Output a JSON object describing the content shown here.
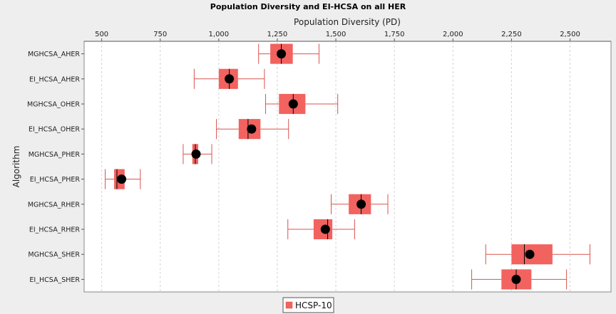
{
  "chart_data": {
    "type": "box",
    "title": "Population Diversity and EI-HCSA on all HER",
    "xlabel": "Population Diversity (PD)",
    "ylabel": "Algorithm",
    "xlim": [
      425,
      2675
    ],
    "xticks": [
      500,
      750,
      1000,
      1250,
      1500,
      1750,
      2000,
      2250,
      2500
    ],
    "xtick_labels": [
      "500",
      "750",
      "1,000",
      "1,250",
      "1,500",
      "1,750",
      "2,000",
      "2,250",
      "2,500"
    ],
    "axis_position": "top",
    "grid": true,
    "legend": {
      "position": "bottom-center",
      "entries": [
        "HCSP-10"
      ]
    },
    "colors": {
      "box": "#f2625f",
      "whisker": "#d9534f",
      "mean": "#000000",
      "median": "#000000"
    },
    "series": [
      {
        "name": "HCSP-10",
        "boxes": [
          {
            "label": "MGHCSA_AHER",
            "whisker_low": 1170,
            "q1": 1220,
            "median": 1267,
            "q3": 1316,
            "whisker_high": 1428,
            "mean": 1267
          },
          {
            "label": "EI_HCSA_AHER",
            "whisker_low": 895,
            "q1": 1000,
            "median": 1045,
            "q3": 1082,
            "whisker_high": 1195,
            "mean": 1045
          },
          {
            "label": "MGHCSA_OHER",
            "whisker_low": 1200,
            "q1": 1257,
            "median": 1318,
            "q3": 1370,
            "whisker_high": 1508,
            "mean": 1318
          },
          {
            "label": "EI_HCSA_OHER",
            "whisker_low": 990,
            "q1": 1085,
            "median": 1125,
            "q3": 1178,
            "whisker_high": 1298,
            "mean": 1140
          },
          {
            "label": "MGHCSA_PHER",
            "whisker_low": 848,
            "q1": 887,
            "median": 900,
            "q3": 912,
            "whisker_high": 970,
            "mean": 903
          },
          {
            "label": "EI_HCSA_PHER",
            "whisker_low": 515,
            "q1": 553,
            "median": 565,
            "q3": 598,
            "whisker_high": 665,
            "mean": 585
          },
          {
            "label": "MGHCSA_RHER",
            "whisker_low": 1480,
            "q1": 1555,
            "median": 1608,
            "q3": 1650,
            "whisker_high": 1722,
            "mean": 1608
          },
          {
            "label": "EI_HCSA_RHER",
            "whisker_low": 1295,
            "q1": 1405,
            "median": 1465,
            "q3": 1485,
            "whisker_high": 1580,
            "mean": 1455
          },
          {
            "label": "MGHCSA_SHER",
            "whisker_low": 2140,
            "q1": 2250,
            "median": 2305,
            "q3": 2425,
            "whisker_high": 2585,
            "mean": 2328
          },
          {
            "label": "EI_HCSA_SHER",
            "whisker_low": 2080,
            "q1": 2207,
            "median": 2270,
            "q3": 2335,
            "whisker_high": 2485,
            "mean": 2270
          }
        ]
      }
    ]
  }
}
